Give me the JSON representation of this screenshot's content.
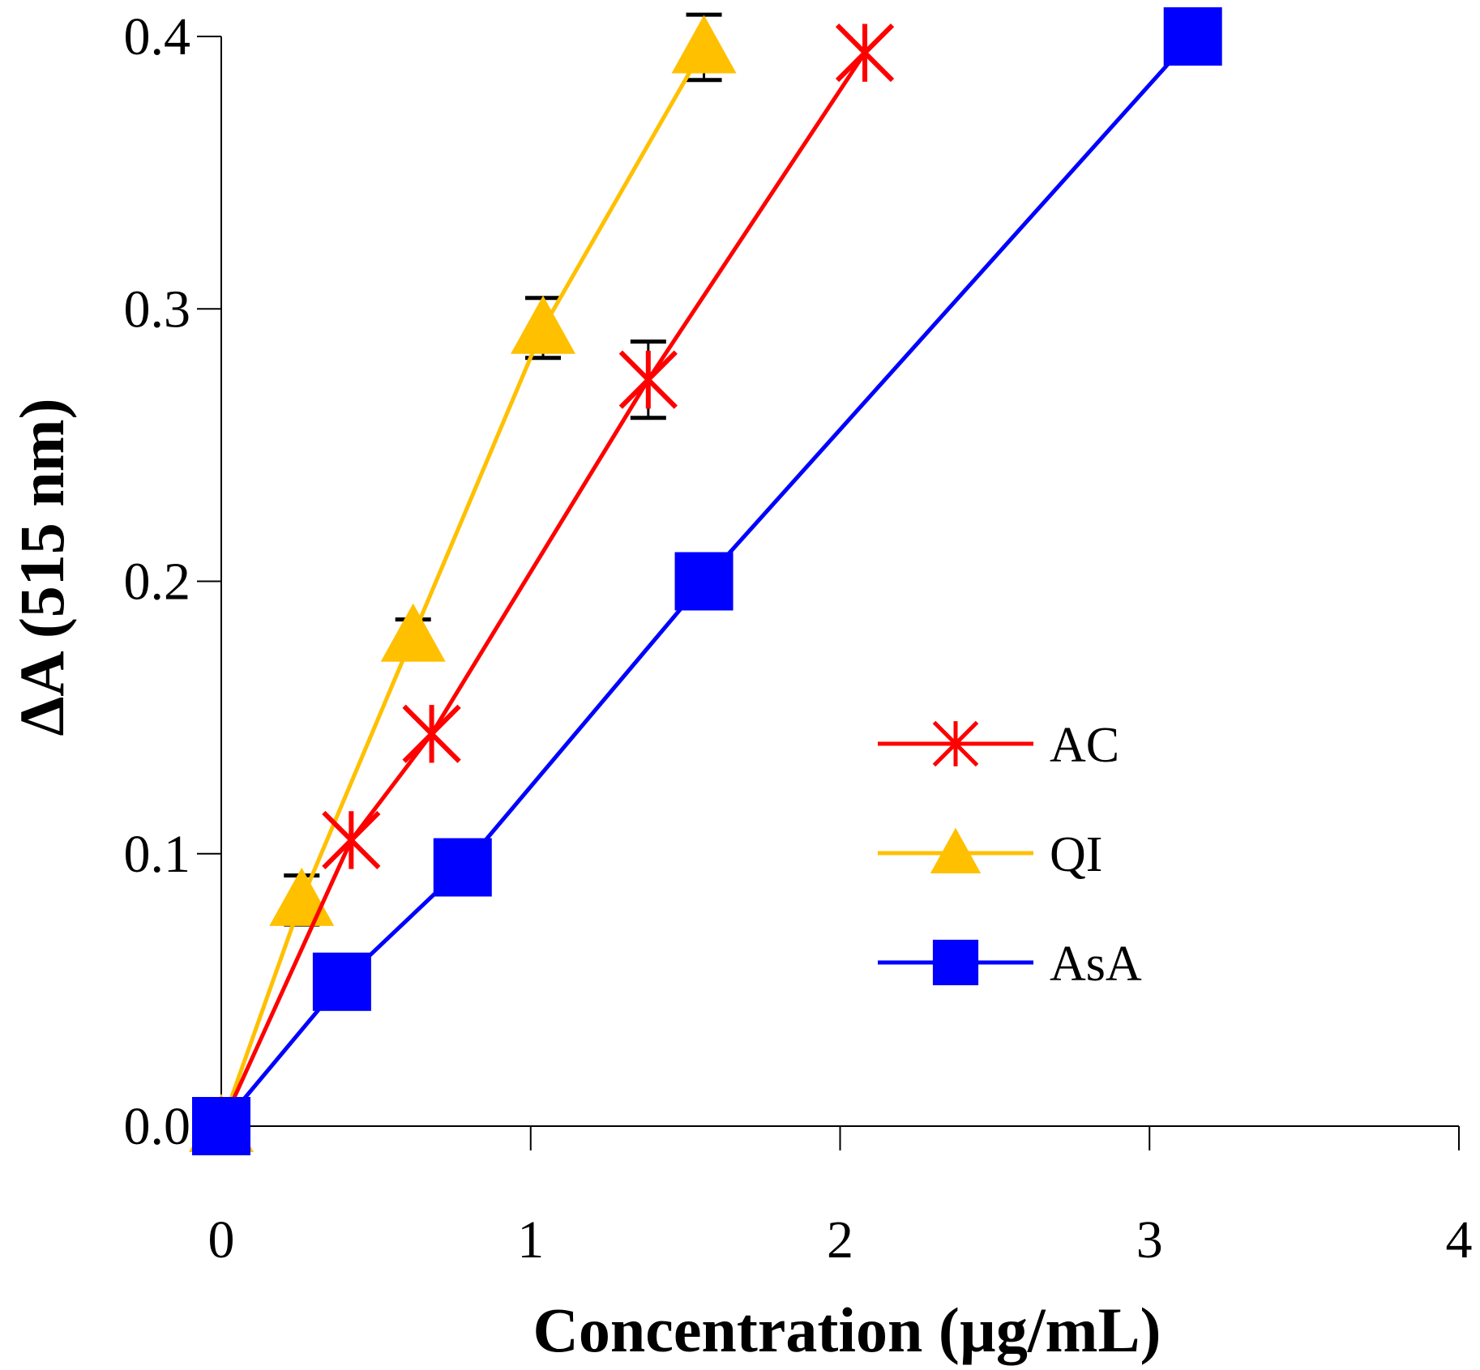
{
  "chart_data": {
    "type": "line",
    "title": "",
    "xlabel": "Concentration (µg/mL)",
    "ylabel": "ΔA (515 nm)",
    "xlim": [
      0,
      4
    ],
    "ylim": [
      0,
      0.4
    ],
    "x_ticks": [
      "0",
      "1",
      "2",
      "3",
      "4"
    ],
    "y_ticks": [
      "0.0",
      "0.1",
      "0.2",
      "0.3",
      "0.4"
    ],
    "grid": false,
    "legend_position": "center-right",
    "series": [
      {
        "name": "AC",
        "color": "#ff0000",
        "marker": "asterisk",
        "x": [
          0,
          0.42,
          0.68,
          1.38,
          2.08
        ],
        "y": [
          0,
          0.105,
          0.144,
          0.274,
          0.394
        ],
        "error": [
          0,
          0,
          0,
          0.014,
          0
        ]
      },
      {
        "name": "QI",
        "color": "#ffc000",
        "marker": "triangle",
        "x": [
          0,
          0.26,
          0.62,
          1.04,
          1.56
        ],
        "y": [
          0,
          0.083,
          0.18,
          0.293,
          0.396
        ],
        "error": [
          0,
          0.009,
          0.006,
          0.011,
          0.012
        ]
      },
      {
        "name": "AsA",
        "color": "#0000ff",
        "marker": "square",
        "x": [
          0,
          0.39,
          0.78,
          1.56,
          3.14
        ],
        "y": [
          0,
          0.053,
          0.095,
          0.2,
          0.4
        ],
        "error": [
          0,
          0,
          0,
          0,
          0
        ]
      }
    ]
  }
}
